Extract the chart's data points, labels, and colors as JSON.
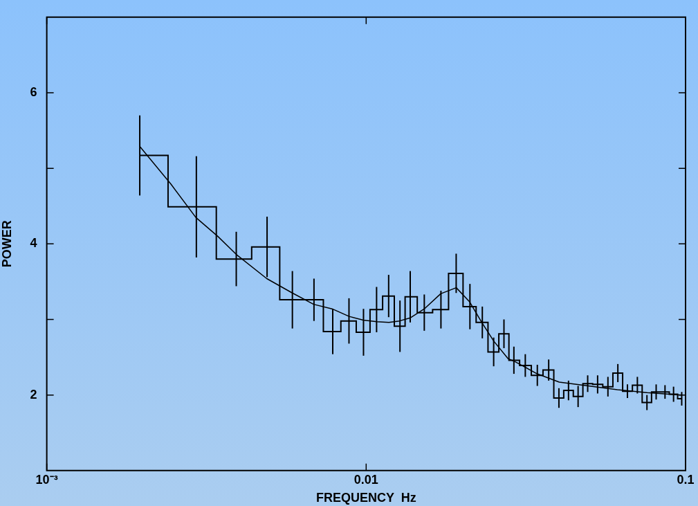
{
  "chart_data": {
    "type": "step",
    "xlabel": "FREQUENCY  Hz",
    "ylabel": "POWER",
    "log": "x",
    "xlim": [
      0.001,
      0.1
    ],
    "xticks": [
      {
        "value": 0.001,
        "label": "10⁻³"
      },
      0.01,
      0.1
    ],
    "ylim": [
      1,
      7
    ],
    "yticks": [
      2,
      {
        "value": 3,
        "label": null
      },
      4,
      {
        "value": 5,
        "label": null
      },
      6
    ],
    "grid": false,
    "legend": false,
    "series": [
      {
        "color": "#000000",
        "x": [
          0.001955,
          0.00294,
          0.00392,
          0.004895,
          0.005875,
          0.006865,
          0.00786,
          0.008835,
          0.00981,
          0.01078,
          0.01176,
          0.01276,
          0.01374,
          0.015205,
          0.017145,
          0.019135,
          0.02113,
          0.023105,
          0.025075,
          0.027005,
          0.02901,
          0.031495,
          0.03435,
          0.03728,
          0.040135,
          0.04301,
          0.046085,
          0.049385,
          0.05305,
          0.057145,
          0.06138,
          0.065775,
          0.07066,
          0.075705,
          0.080905,
          0.08624,
          0.091715,
          0.09727
        ],
        "values": [
          5.17,
          4.49,
          3.8,
          3.96,
          3.26,
          3.26,
          2.84,
          2.98,
          2.83,
          3.13,
          3.31,
          2.91,
          3.3,
          3.09,
          3.13,
          3.61,
          3.17,
          2.96,
          2.57,
          2.81,
          2.46,
          2.39,
          2.26,
          2.33,
          1.96,
          2.06,
          1.98,
          2.15,
          2.14,
          2.11,
          2.29,
          2.05,
          2.13,
          1.9,
          2.04,
          2.04,
          2.01,
          1.95
        ],
        "errors": [
          0.53,
          0.67,
          0.36,
          0.4,
          0.38,
          0.28,
          0.3,
          0.3,
          0.31,
          0.3,
          0.28,
          0.34,
          0.34,
          0.24,
          0.25,
          0.26,
          0.3,
          0.21,
          0.19,
          0.19,
          0.18,
          0.15,
          0.14,
          0.14,
          0.13,
          0.13,
          0.14,
          0.11,
          0.12,
          0.13,
          0.12,
          0.09,
          0.11,
          0.1,
          0.1,
          0.09,
          0.1,
          0.09
        ]
      },
      {
        "type": "line",
        "color": "#000000",
        "x": [
          0.001955,
          0.002448,
          0.002929,
          0.00343,
          0.003921,
          0.004885,
          0.005872,
          0.006847,
          0.007822,
          0.008845,
          0.0098,
          0.0108,
          0.01178,
          0.01272,
          0.01373,
          0.01521,
          0.01711,
          0.01915,
          0.0211,
          0.02302,
          0.02512,
          0.02783,
          0.02929,
          0.03432,
          0.04021,
          0.04962,
          0.06119,
          0.07586,
          0.09747
        ],
        "values": [
          5.29,
          4.79,
          4.35,
          4.1,
          3.86,
          3.54,
          3.35,
          3.2,
          3.14,
          3.04,
          2.99,
          2.97,
          2.96,
          2.98,
          3.02,
          3.14,
          3.34,
          3.42,
          3.23,
          2.96,
          2.71,
          2.48,
          2.44,
          2.28,
          2.17,
          2.12,
          2.07,
          2.03,
          2.0
        ]
      }
    ]
  }
}
